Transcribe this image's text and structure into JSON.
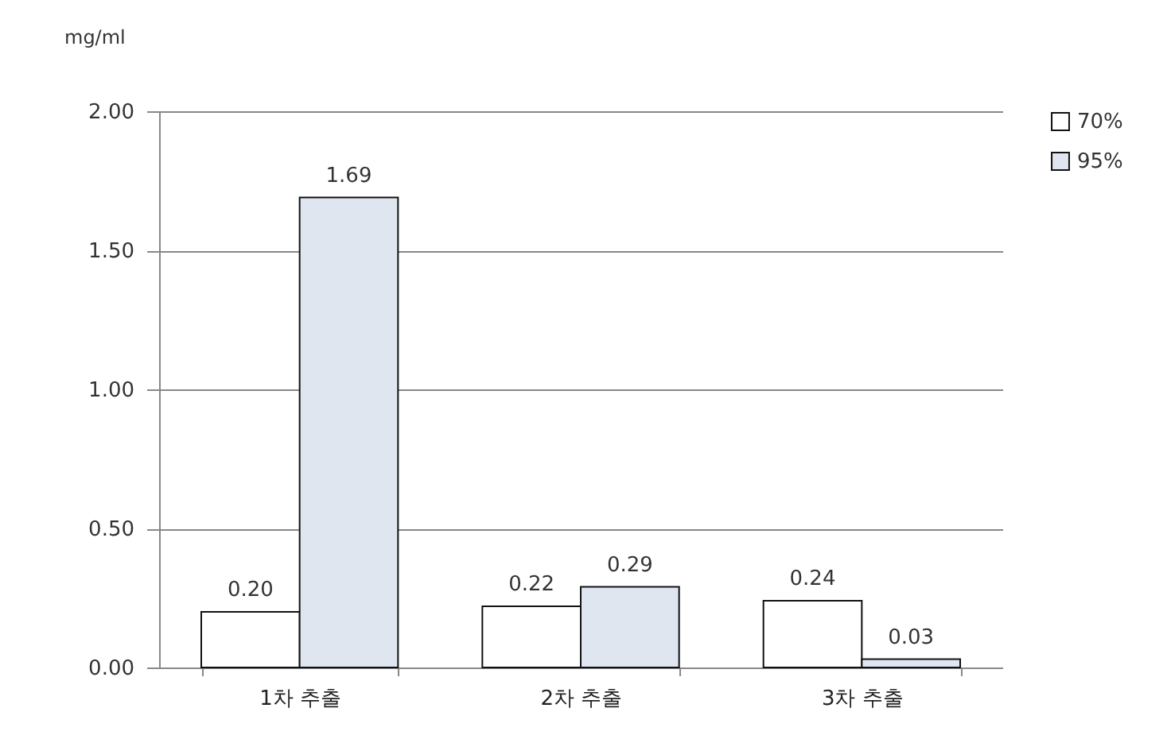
{
  "chart_data": {
    "type": "bar",
    "ylabel": "mg/ml",
    "categories": [
      "1차 추출",
      "2차 추출",
      "3차 추출"
    ],
    "series": [
      {
        "name": "70%",
        "color": "#ffffff",
        "values": [
          0.2,
          0.22,
          0.24
        ],
        "value_labels": [
          "0.20",
          "0.22",
          "0.24"
        ]
      },
      {
        "name": "95%",
        "color": "#dfe6ef",
        "values": [
          1.69,
          0.29,
          0.03
        ],
        "value_labels": [
          "1.69",
          "0.29",
          "0.03"
        ]
      }
    ],
    "ylim": [
      0,
      2
    ],
    "yticks": [
      {
        "value": 0,
        "label": "0.00"
      },
      {
        "value": 0.5,
        "label": "0.50"
      },
      {
        "value": 1,
        "label": "1.00"
      },
      {
        "value": 1.5,
        "label": "1.50"
      },
      {
        "value": 2,
        "label": "2.00"
      }
    ],
    "grid": "y",
    "legend": "right"
  }
}
